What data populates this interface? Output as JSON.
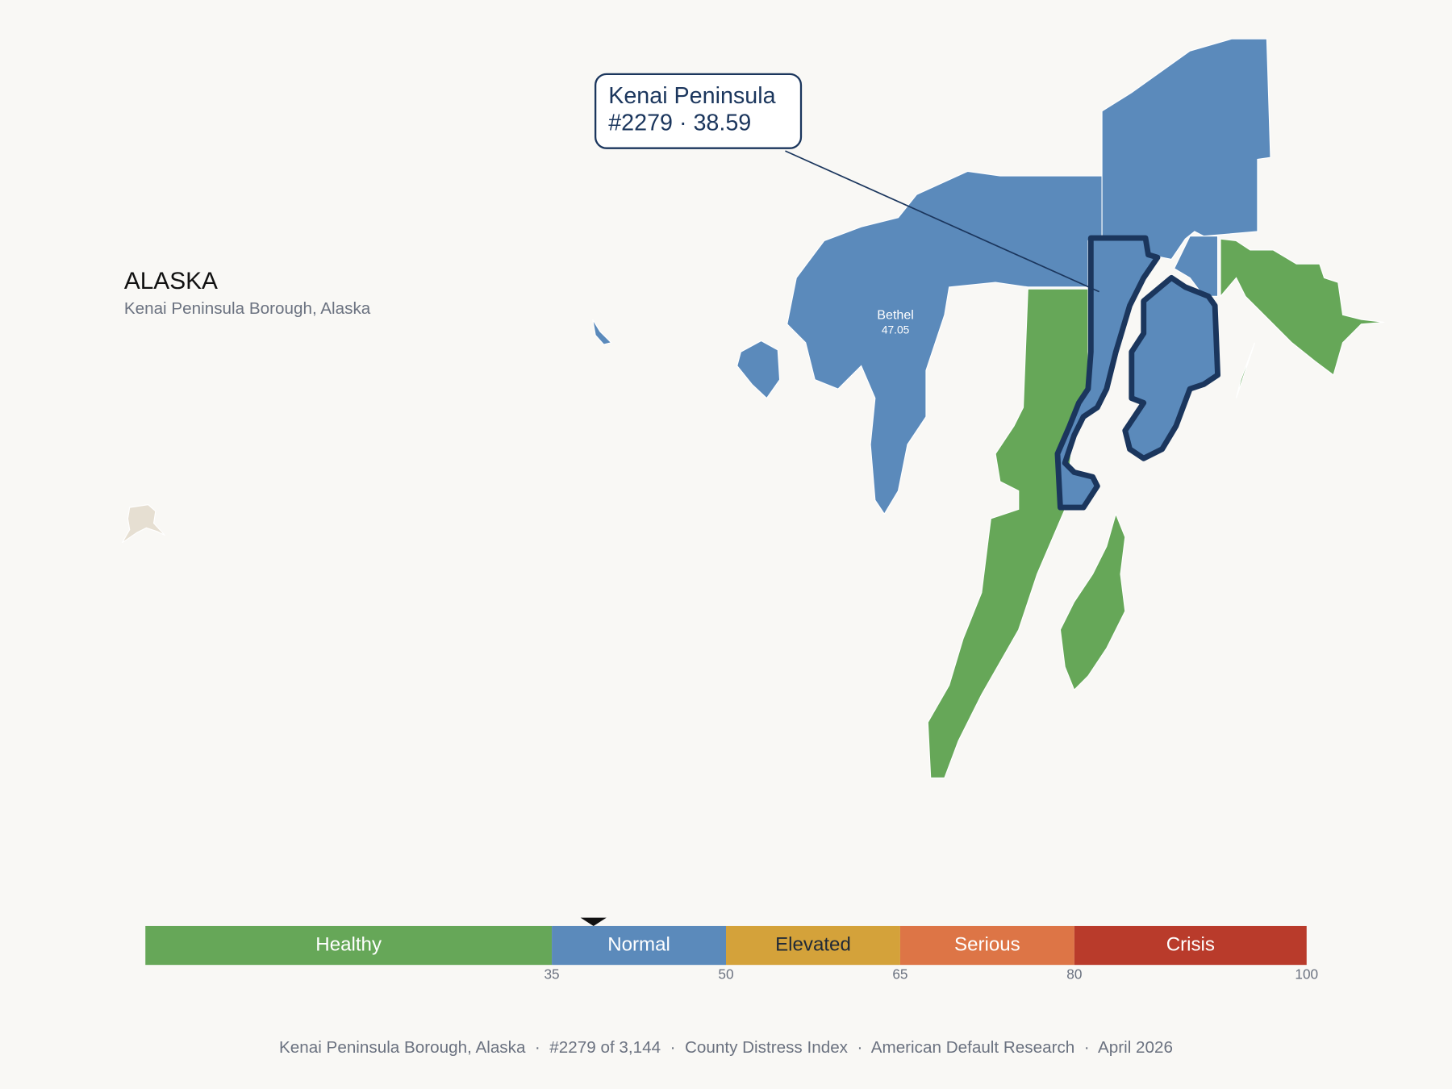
{
  "header": {
    "title": "ALASKA",
    "subtitle": "Kenai Peninsula Borough, Alaska"
  },
  "callout": {
    "name": "Kenai Peninsula",
    "detail": "#2279 · 38.59"
  },
  "map_labels": [
    {
      "name": "Bethel",
      "value": "47.05"
    }
  ],
  "legend": {
    "range": [
      0,
      100
    ],
    "segments": [
      {
        "label": "Healthy",
        "color": "#66a758",
        "text_color": "#ffffff"
      },
      {
        "label": "Normal",
        "color": "#5b8abb",
        "text_color": "#ffffff"
      },
      {
        "label": "Elevated",
        "color": "#d4a23a",
        "text_color": "#1f2937"
      },
      {
        "label": "Serious",
        "color": "#dd7546",
        "text_color": "#ffffff"
      },
      {
        "label": "Crisis",
        "color": "#b93b2b",
        "text_color": "#ffffff"
      }
    ],
    "ticks": [
      35,
      50,
      65,
      80,
      100
    ],
    "marker": 38.59
  },
  "footer": "Kenai Peninsula Borough, Alaska  ·  #2279 of 3,144  ·  County Distress Index  ·  American Default Research  ·  April 2026"
}
